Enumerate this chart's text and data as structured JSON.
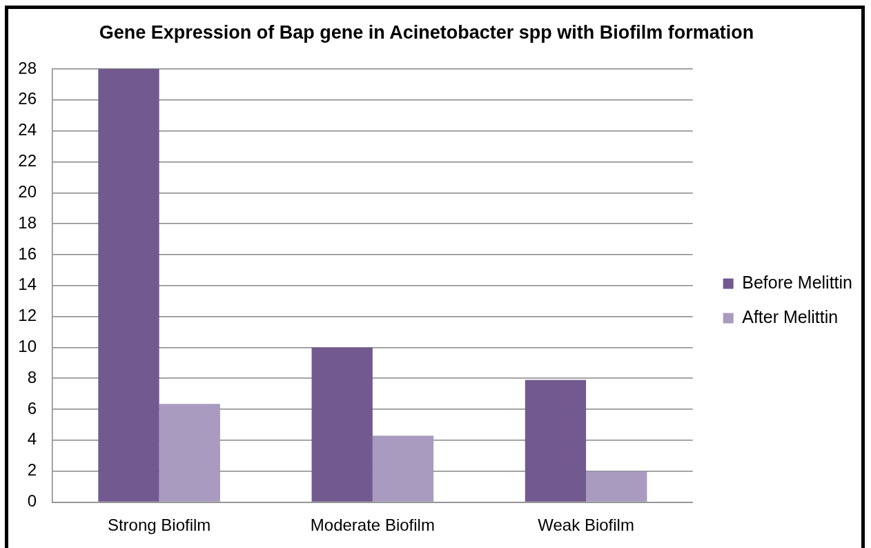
{
  "chart_data": {
    "type": "bar",
    "title": "Gene Expression of Bap gene in Acinetobacter spp with Biofilm formation",
    "categories": [
      "Strong Biofilm",
      "Moderate Biofilm",
      "Weak Biofilm"
    ],
    "series": [
      {
        "name": "Before Melittin",
        "color": "#72598f",
        "values": [
          28,
          10,
          7.9
        ]
      },
      {
        "name": "After Melittin",
        "color": "#a99abf",
        "values": [
          6.35,
          4.3,
          2
        ]
      }
    ],
    "ylim": [
      0,
      28
    ],
    "yticks": [
      0,
      2,
      4,
      6,
      8,
      10,
      12,
      14,
      16,
      18,
      20,
      22,
      24,
      26,
      28
    ],
    "grid": "y",
    "legend": "right"
  }
}
